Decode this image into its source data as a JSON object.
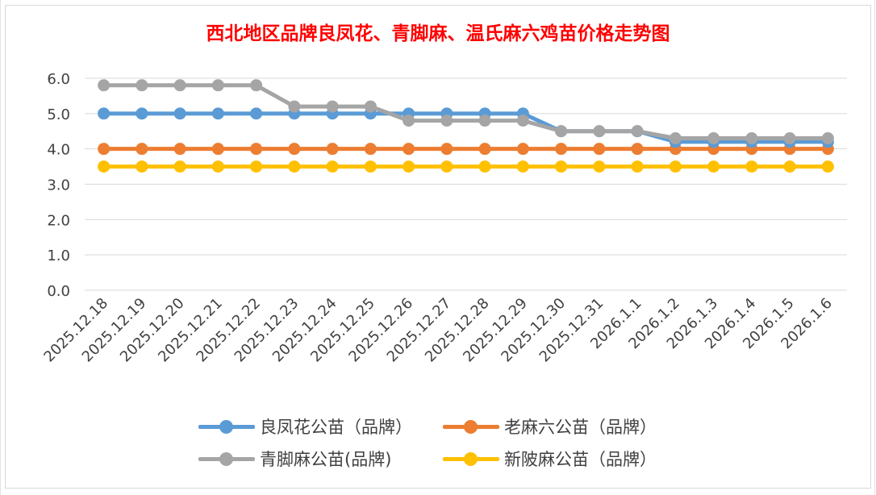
{
  "chart_data": {
    "type": "line",
    "title": "西北地区品牌良凤花、青脚麻、温氏麻六鸡苗价格走势图",
    "x": [
      "2025.12.18",
      "2025.12.19",
      "2025.12.20",
      "2025.12.21",
      "2025.12.22",
      "2025.12.23",
      "2025.12.24",
      "2025.12.25",
      "2025.12.26",
      "2025.12.27",
      "2025.12.28",
      "2025.12.29",
      "2025.12.30",
      "2025.12.31",
      "2026.1.1",
      "2026.1.2",
      "2026.1.3",
      "2026.1.4",
      "2026.1.5",
      "2026.1.6"
    ],
    "ylim": [
      0,
      6
    ],
    "yticks": [
      "0.0",
      "1.0",
      "2.0",
      "3.0",
      "4.0",
      "5.0",
      "6.0"
    ],
    "grid": true,
    "legend_position": "bottom",
    "series": [
      {
        "name": "良凤花公苗（品牌）",
        "color": "#5b9bd5",
        "values": [
          5.0,
          5.0,
          5.0,
          5.0,
          5.0,
          5.0,
          5.0,
          5.0,
          5.0,
          5.0,
          5.0,
          5.0,
          4.5,
          4.5,
          4.5,
          4.2,
          4.2,
          4.2,
          4.2,
          4.2
        ]
      },
      {
        "name": "老麻六公苗（品牌）",
        "color": "#ed7d31",
        "values": [
          4.0,
          4.0,
          4.0,
          4.0,
          4.0,
          4.0,
          4.0,
          4.0,
          4.0,
          4.0,
          4.0,
          4.0,
          4.0,
          4.0,
          4.0,
          4.0,
          4.0,
          4.0,
          4.0,
          4.0
        ]
      },
      {
        "name": "青脚麻公苗(品牌)",
        "color": "#a5a5a5",
        "values": [
          5.8,
          5.8,
          5.8,
          5.8,
          5.8,
          5.2,
          5.2,
          5.2,
          4.8,
          4.8,
          4.8,
          4.8,
          4.5,
          4.5,
          4.5,
          4.3,
          4.3,
          4.3,
          4.3,
          4.3
        ]
      },
      {
        "name": "新陂麻公苗（品牌）",
        "color": "#ffc000",
        "values": [
          3.5,
          3.5,
          3.5,
          3.5,
          3.5,
          3.5,
          3.5,
          3.5,
          3.5,
          3.5,
          3.5,
          3.5,
          3.5,
          3.5,
          3.5,
          3.5,
          3.5,
          3.5,
          3.5,
          3.5
        ]
      }
    ]
  }
}
